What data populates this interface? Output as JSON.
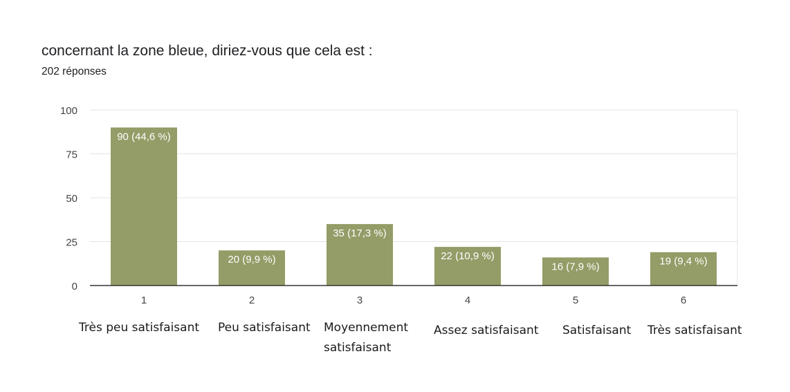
{
  "header": {
    "title": "concernant la zone bleue, diriez-vous que cela est :",
    "responses": "202 réponses"
  },
  "category_descriptions": [
    "Très peu satisfaisant",
    "Peu satisfaisant",
    "Moyennement satisfaisant",
    "Assez satisfaisant",
    "Satisfaisant",
    "Très satisfaisant"
  ],
  "category_descriptions_wrapped": [
    [
      "Très peu satisfaisant"
    ],
    [
      "Peu satisfaisant"
    ],
    [
      "Moyennement",
      "satisfaisant"
    ],
    [
      "Assez satisfaisant"
    ],
    [
      "Satisfaisant"
    ],
    [
      "Très satisfaisant"
    ]
  ],
  "chart_data": {
    "type": "bar",
    "title": "concernant la zone bleue, diriez-vous que cela est :",
    "subtitle": "202 réponses",
    "categories": [
      "1",
      "2",
      "3",
      "4",
      "5",
      "6"
    ],
    "values": [
      90,
      20,
      35,
      22,
      16,
      19
    ],
    "data_labels": [
      "90 (44,6 %)",
      "20 (9,9 %)",
      "35 (17,3 %)",
      "22 (10,9 %)",
      "16 (7,9 %)",
      "19 (9,4 %)"
    ],
    "ylim": [
      0,
      100
    ],
    "yticks": [
      0,
      25,
      50,
      75,
      100
    ],
    "grid": true,
    "legend": "none",
    "colors": {
      "bar": "#949c67",
      "grid": "#e4e4e4",
      "axis": "#333333",
      "tick_text": "#444444",
      "data_label": "#ffffff"
    }
  }
}
